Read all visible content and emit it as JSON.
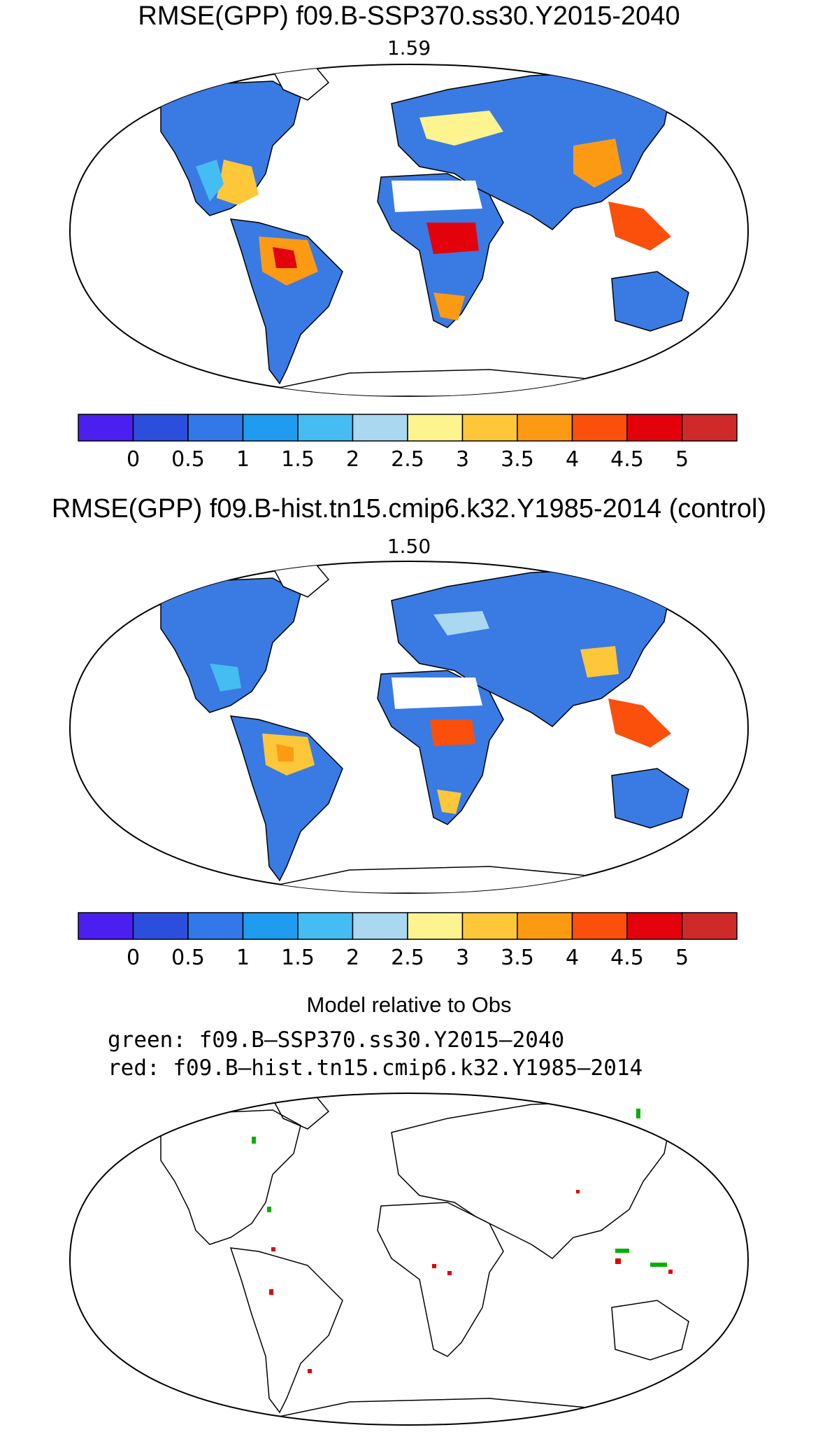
{
  "panels": [
    {
      "title": "RMSE(GPP) f09.B-SSP370.ss30.Y2015-2040",
      "value": "1.59"
    },
    {
      "title": "RMSE(GPP) f09.B-hist.tn15.cmip6.k32.Y1985-2014 (control)",
      "value": "1.50"
    }
  ],
  "colorbar": {
    "colors": [
      "#4a1fef",
      "#2b4fdc",
      "#3378e8",
      "#1f9bf0",
      "#45bcf2",
      "#a9d8f0",
      "#fdf38f",
      "#fec73a",
      "#fd9a14",
      "#fb4f0c",
      "#e3020c",
      "#cf2a2a"
    ],
    "labels": [
      "0",
      "0.5",
      "1",
      "1.5",
      "2",
      "2.5",
      "3",
      "3.5",
      "4",
      "4.5",
      "5"
    ]
  },
  "comparison": {
    "title": "Model relative to Obs",
    "green_line": "green: f09.B—SSP370.ss30.Y2015—2040",
    "red_line": "red: f09.B—hist.tn15.cmip6.k32.Y1985—2014",
    "green_color": "#00b000",
    "red_color": "#e00000"
  }
}
